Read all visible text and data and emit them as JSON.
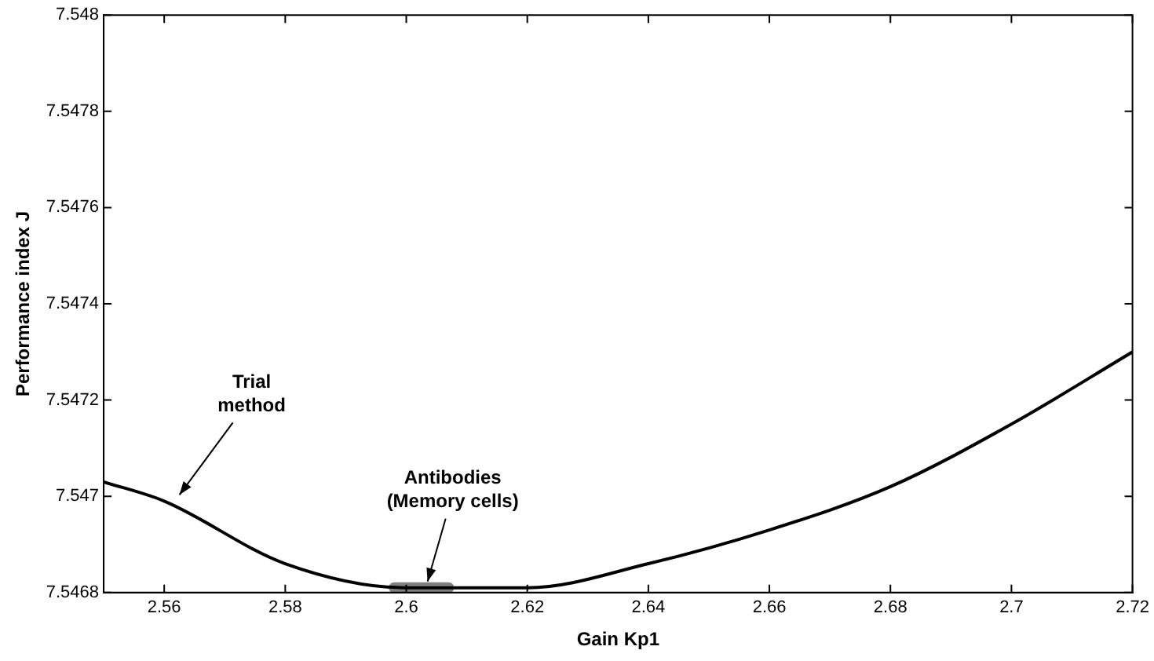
{
  "chart_data": {
    "type": "line",
    "xlabel": "Gain Kp1",
    "ylabel": "Performance index J",
    "xlim": [
      2.55,
      2.72
    ],
    "xticks": [
      2.56,
      2.58,
      2.6,
      2.62,
      2.64,
      2.66,
      2.68,
      2.7,
      2.72
    ],
    "ylim": [
      7.5468,
      7.548
    ],
    "yticks": [
      7.5468,
      7.547,
      7.5472,
      7.5474,
      7.5476,
      7.5478,
      7.548
    ],
    "series": [
      {
        "color": "#000000",
        "x": [
          2.55,
          2.56,
          2.58,
          2.6,
          2.62,
          2.64,
          2.66,
          2.68,
          2.7,
          2.72
        ],
        "values": [
          7.54703,
          7.54699,
          7.54686,
          7.54681,
          7.54681,
          7.54686,
          7.54693,
          7.54702,
          7.54715,
          7.5473
        ]
      },
      {
        "color": "#808080",
        "x": [
          2.598,
          2.607
        ],
        "values": [
          7.54681,
          7.54681
        ]
      }
    ],
    "marker": "none",
    "line_style": "solid",
    "annotations": [
      {
        "text": "Trial\nmethod",
        "x": 2.562,
        "y": 7.54699
      },
      {
        "text": "Antibodies\n(Memory cells)",
        "x": 2.603,
        "y": 7.54681
      }
    ]
  }
}
